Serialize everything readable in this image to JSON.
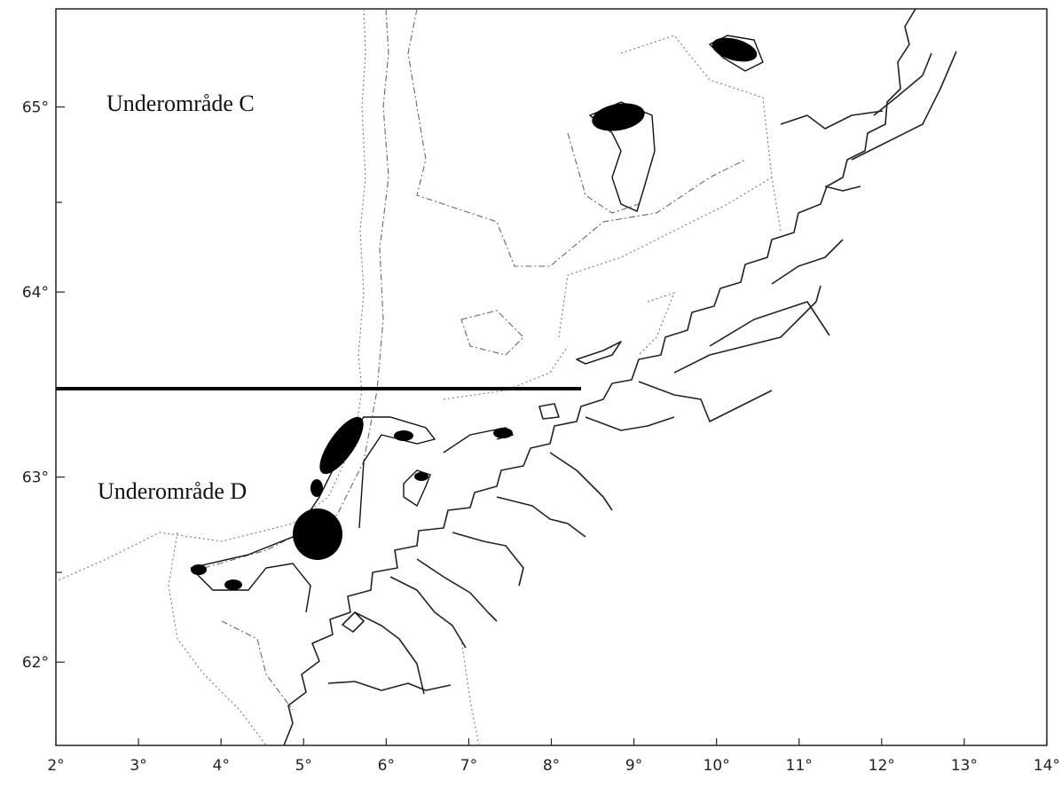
{
  "map": {
    "xlim": [
      2,
      14
    ],
    "ylim": [
      61.55,
      65.53
    ],
    "xticks": [
      {
        "value": 2,
        "label": "2°"
      },
      {
        "value": 3,
        "label": "3°"
      },
      {
        "value": 4,
        "label": "4°"
      },
      {
        "value": 5,
        "label": "5°"
      },
      {
        "value": 6,
        "label": "6°"
      },
      {
        "value": 7,
        "label": "7°"
      },
      {
        "value": 8,
        "label": "8°"
      },
      {
        "value": 9,
        "label": "9°"
      },
      {
        "value": 10,
        "label": "10°"
      },
      {
        "value": 11,
        "label": "11°"
      },
      {
        "value": 12,
        "label": "12°"
      },
      {
        "value": 13,
        "label": "13°"
      },
      {
        "value": 14,
        "label": "14°"
      }
    ],
    "yticks": [
      {
        "value": 62,
        "label": "62°"
      },
      {
        "value": 63,
        "label": "63°"
      },
      {
        "value": 64,
        "label": "64°"
      },
      {
        "value": 65,
        "label": "65°"
      }
    ],
    "regions": [
      "Underområde C",
      "Underområde D"
    ]
  }
}
